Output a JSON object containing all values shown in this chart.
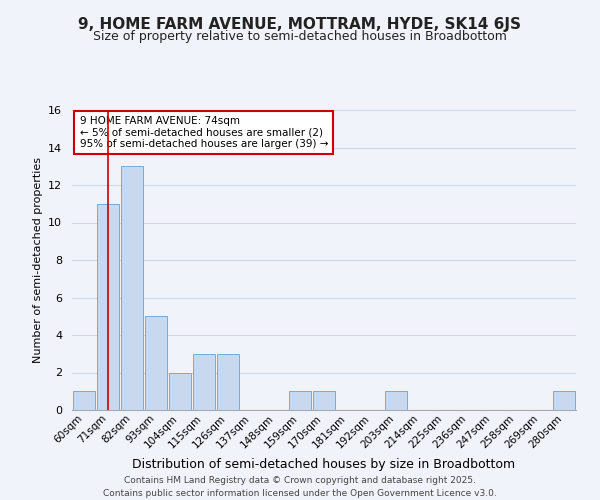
{
  "title": "9, HOME FARM AVENUE, MOTTRAM, HYDE, SK14 6JS",
  "subtitle": "Size of property relative to semi-detached houses in Broadbottom",
  "xlabel": "Distribution of semi-detached houses by size in Broadbottom",
  "ylabel": "Number of semi-detached properties",
  "bar_color": "#c8d8ef",
  "bar_edge_color": "#7aaad0",
  "background_color": "#f0f4fa",
  "plot_bg_color": "#f0f4fa",
  "categories": [
    "60sqm",
    "71sqm",
    "82sqm",
    "93sqm",
    "104sqm",
    "115sqm",
    "126sqm",
    "137sqm",
    "148sqm",
    "159sqm",
    "170sqm",
    "181sqm",
    "192sqm",
    "203sqm",
    "214sqm",
    "225sqm",
    "236sqm",
    "247sqm",
    "258sqm",
    "269sqm",
    "280sqm"
  ],
  "values": [
    1,
    11,
    13,
    5,
    2,
    3,
    3,
    0,
    0,
    1,
    1,
    0,
    0,
    1,
    0,
    0,
    0,
    0,
    0,
    0,
    1
  ],
  "ylim": [
    0,
    16
  ],
  "yticks": [
    0,
    2,
    4,
    6,
    8,
    10,
    12,
    14,
    16
  ],
  "property_line_x": 1,
  "annotation_title": "9 HOME FARM AVENUE: 74sqm",
  "annotation_line1": "← 5% of semi-detached houses are smaller (2)",
  "annotation_line2": "95% of semi-detached houses are larger (39) →",
  "footer_line1": "Contains HM Land Registry data © Crown copyright and database right 2025.",
  "footer_line2": "Contains public sector information licensed under the Open Government Licence v3.0.",
  "grid_color": "#d0d8e8",
  "red_line_color": "#cc0000",
  "annotation_box_color": "#ffffff",
  "annotation_box_edge": "#cc0000",
  "title_fontsize": 11,
  "subtitle_fontsize": 9,
  "xlabel_fontsize": 9,
  "ylabel_fontsize": 8,
  "tick_fontsize": 7.5,
  "footer_fontsize": 6.5
}
